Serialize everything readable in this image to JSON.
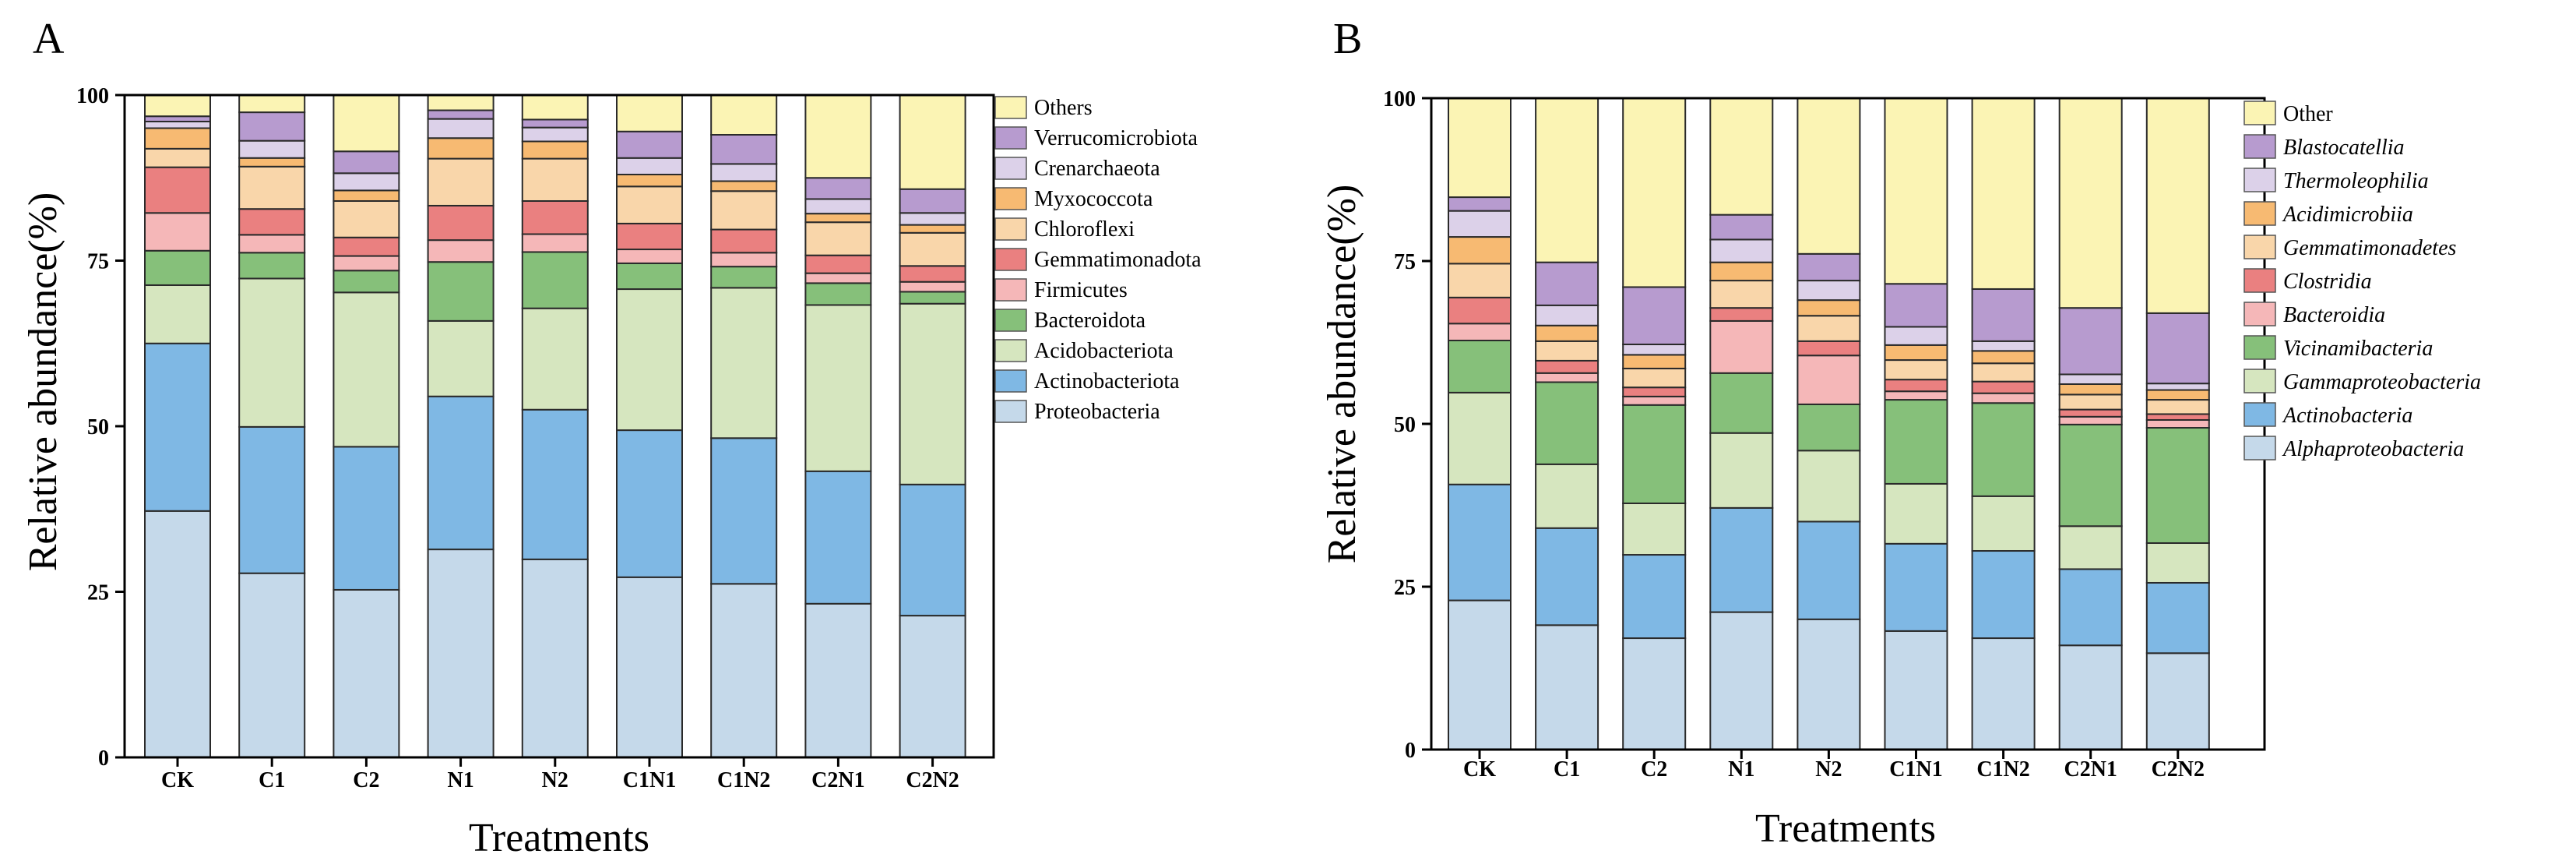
{
  "colors": {
    "Proteobacteria": "#c5d9ea",
    "Actinobacteriota": "#7fb8e4",
    "Acidobacteriota": "#d6e6bf",
    "Bacteroidota": "#86c07a",
    "Firmicutes": "#f5b7b8",
    "Gemmatimonadota": "#ea8080",
    "Chloroflexi": "#f9d6aa",
    "Myxococcota": "#f7ba72",
    "Crenarchaeota": "#dcd1e9",
    "Verrucomicrobiota": "#b79bcf",
    "Others": "#fbf4b4"
  },
  "chart_data": [
    {
      "type": "bar",
      "stacked": true,
      "panel_label": "A",
      "xlabel": "Treatments",
      "ylabel": "Relative abundance(%)",
      "ylim": [
        0,
        100
      ],
      "yticks": [
        "0",
        "25",
        "50",
        "75",
        "100"
      ],
      "categories": [
        "CK",
        "C1",
        "C2",
        "N1",
        "N2",
        "C1N1",
        "C1N2",
        "C2N1",
        "C2N2"
      ],
      "legend_position": "right",
      "series": [
        {
          "name": "Proteobacteria",
          "values": [
            37.2,
            27.8,
            25.3,
            31.4,
            29.9,
            27.2,
            26.2,
            23.2,
            21.4
          ]
        },
        {
          "name": "Actinobacteriota",
          "values": [
            25.3,
            22.1,
            21.6,
            23.1,
            22.6,
            22.2,
            22.0,
            20.0,
            19.8
          ]
        },
        {
          "name": "Acidobacteriota",
          "values": [
            8.8,
            22.4,
            23.3,
            11.4,
            15.3,
            21.3,
            22.7,
            25.1,
            27.3
          ]
        },
        {
          "name": "Bacteroidota",
          "values": [
            5.2,
            3.9,
            3.3,
            8.9,
            8.5,
            3.9,
            3.2,
            3.3,
            1.8
          ]
        },
        {
          "name": "Firmicutes",
          "values": [
            5.7,
            2.7,
            2.2,
            3.3,
            2.7,
            2.1,
            2.1,
            1.5,
            1.5
          ]
        },
        {
          "name": "Gemmatimonadota",
          "values": [
            6.9,
            3.9,
            2.8,
            5.2,
            5.0,
            3.9,
            3.5,
            2.7,
            2.4
          ]
        },
        {
          "name": "Chloroflexi",
          "values": [
            2.8,
            6.4,
            5.5,
            7.1,
            6.4,
            5.6,
            5.8,
            5.0,
            5.0
          ]
        },
        {
          "name": "Myxococcota",
          "values": [
            3.1,
            1.3,
            1.6,
            3.1,
            2.6,
            1.8,
            1.5,
            1.3,
            1.2
          ]
        },
        {
          "name": "Crenarchaeota",
          "values": [
            1.0,
            2.6,
            2.6,
            2.9,
            2.1,
            2.5,
            2.6,
            2.2,
            1.8
          ]
        },
        {
          "name": "Verrucomicrobiota",
          "values": [
            0.8,
            4.3,
            3.3,
            1.3,
            1.2,
            4.0,
            4.4,
            3.2,
            3.6
          ]
        },
        {
          "name": "Others",
          "values": [
            3.2,
            2.6,
            8.5,
            2.3,
            3.7,
            5.5,
            6.0,
            12.5,
            14.2
          ]
        }
      ]
    },
    {
      "type": "bar",
      "stacked": true,
      "panel_label": "B",
      "xlabel": "Treatments",
      "ylabel": "Relative abundance(%)",
      "ylim": [
        0,
        100
      ],
      "yticks": [
        "0",
        "25",
        "50",
        "75",
        "100"
      ],
      "categories": [
        "CK",
        "C1",
        "C2",
        "N1",
        "N2",
        "C1N1",
        "C1N2",
        "C2N1",
        "C2N2"
      ],
      "legend_position": "right",
      "series": [
        {
          "name": "Alphaproteobacteria",
          "italic": true,
          "color": "#c5d9ea",
          "values": [
            22.9,
            19.1,
            17.1,
            21.1,
            20.0,
            18.2,
            17.1,
            16.0,
            14.8
          ]
        },
        {
          "name": "Actinobacteria",
          "italic": true,
          "color": "#7fb8e4",
          "values": [
            17.8,
            14.9,
            12.8,
            16.0,
            15.0,
            13.4,
            13.4,
            11.7,
            10.8
          ]
        },
        {
          "name": "Gammaproteobacteria",
          "italic": true,
          "color": "#d6e6bf",
          "values": [
            14.1,
            9.8,
            7.9,
            11.5,
            10.9,
            9.2,
            8.4,
            6.6,
            6.1
          ]
        },
        {
          "name": "Vicinamibacteria",
          "italic": true,
          "color": "#86c07a",
          "values": [
            8.0,
            12.6,
            15.1,
            9.2,
            7.1,
            12.9,
            14.3,
            15.6,
            17.7
          ]
        },
        {
          "name": "Bacteroidia",
          "italic": true,
          "color": "#f5b7b8",
          "values": [
            2.6,
            1.4,
            1.3,
            8.0,
            7.5,
            1.3,
            1.5,
            1.2,
            1.2
          ]
        },
        {
          "name": "Clostridia",
          "italic": true,
          "color": "#ea8080",
          "values": [
            4.0,
            1.9,
            1.4,
            2.0,
            2.2,
            1.8,
            1.8,
            1.1,
            0.9
          ]
        },
        {
          "name": "Gemmatimonadetes",
          "italic": true,
          "color": "#f9d6aa",
          "values": [
            5.2,
            3.0,
            2.9,
            4.2,
            3.9,
            3.0,
            2.8,
            2.3,
            2.2
          ]
        },
        {
          "name": "Acidimicrobiia",
          "italic": true,
          "color": "#f7ba72",
          "values": [
            4.1,
            2.4,
            2.1,
            2.8,
            2.4,
            2.3,
            1.9,
            1.6,
            1.5
          ]
        },
        {
          "name": "Thermoleophilia",
          "italic": true,
          "color": "#dcd1e9",
          "values": [
            4.0,
            3.1,
            1.6,
            3.5,
            3.0,
            2.8,
            1.5,
            1.5,
            1.0
          ]
        },
        {
          "name": "Blastocatellia",
          "italic": true,
          "color": "#b79bcf",
          "values": [
            2.1,
            6.6,
            8.8,
            3.8,
            4.1,
            6.6,
            8.0,
            10.2,
            10.8
          ]
        },
        {
          "name": "Other",
          "italic": false,
          "color": "#fbf4b4",
          "values": [
            15.2,
            25.2,
            29.0,
            17.9,
            23.9,
            28.5,
            29.3,
            32.2,
            33.0
          ]
        }
      ]
    }
  ]
}
